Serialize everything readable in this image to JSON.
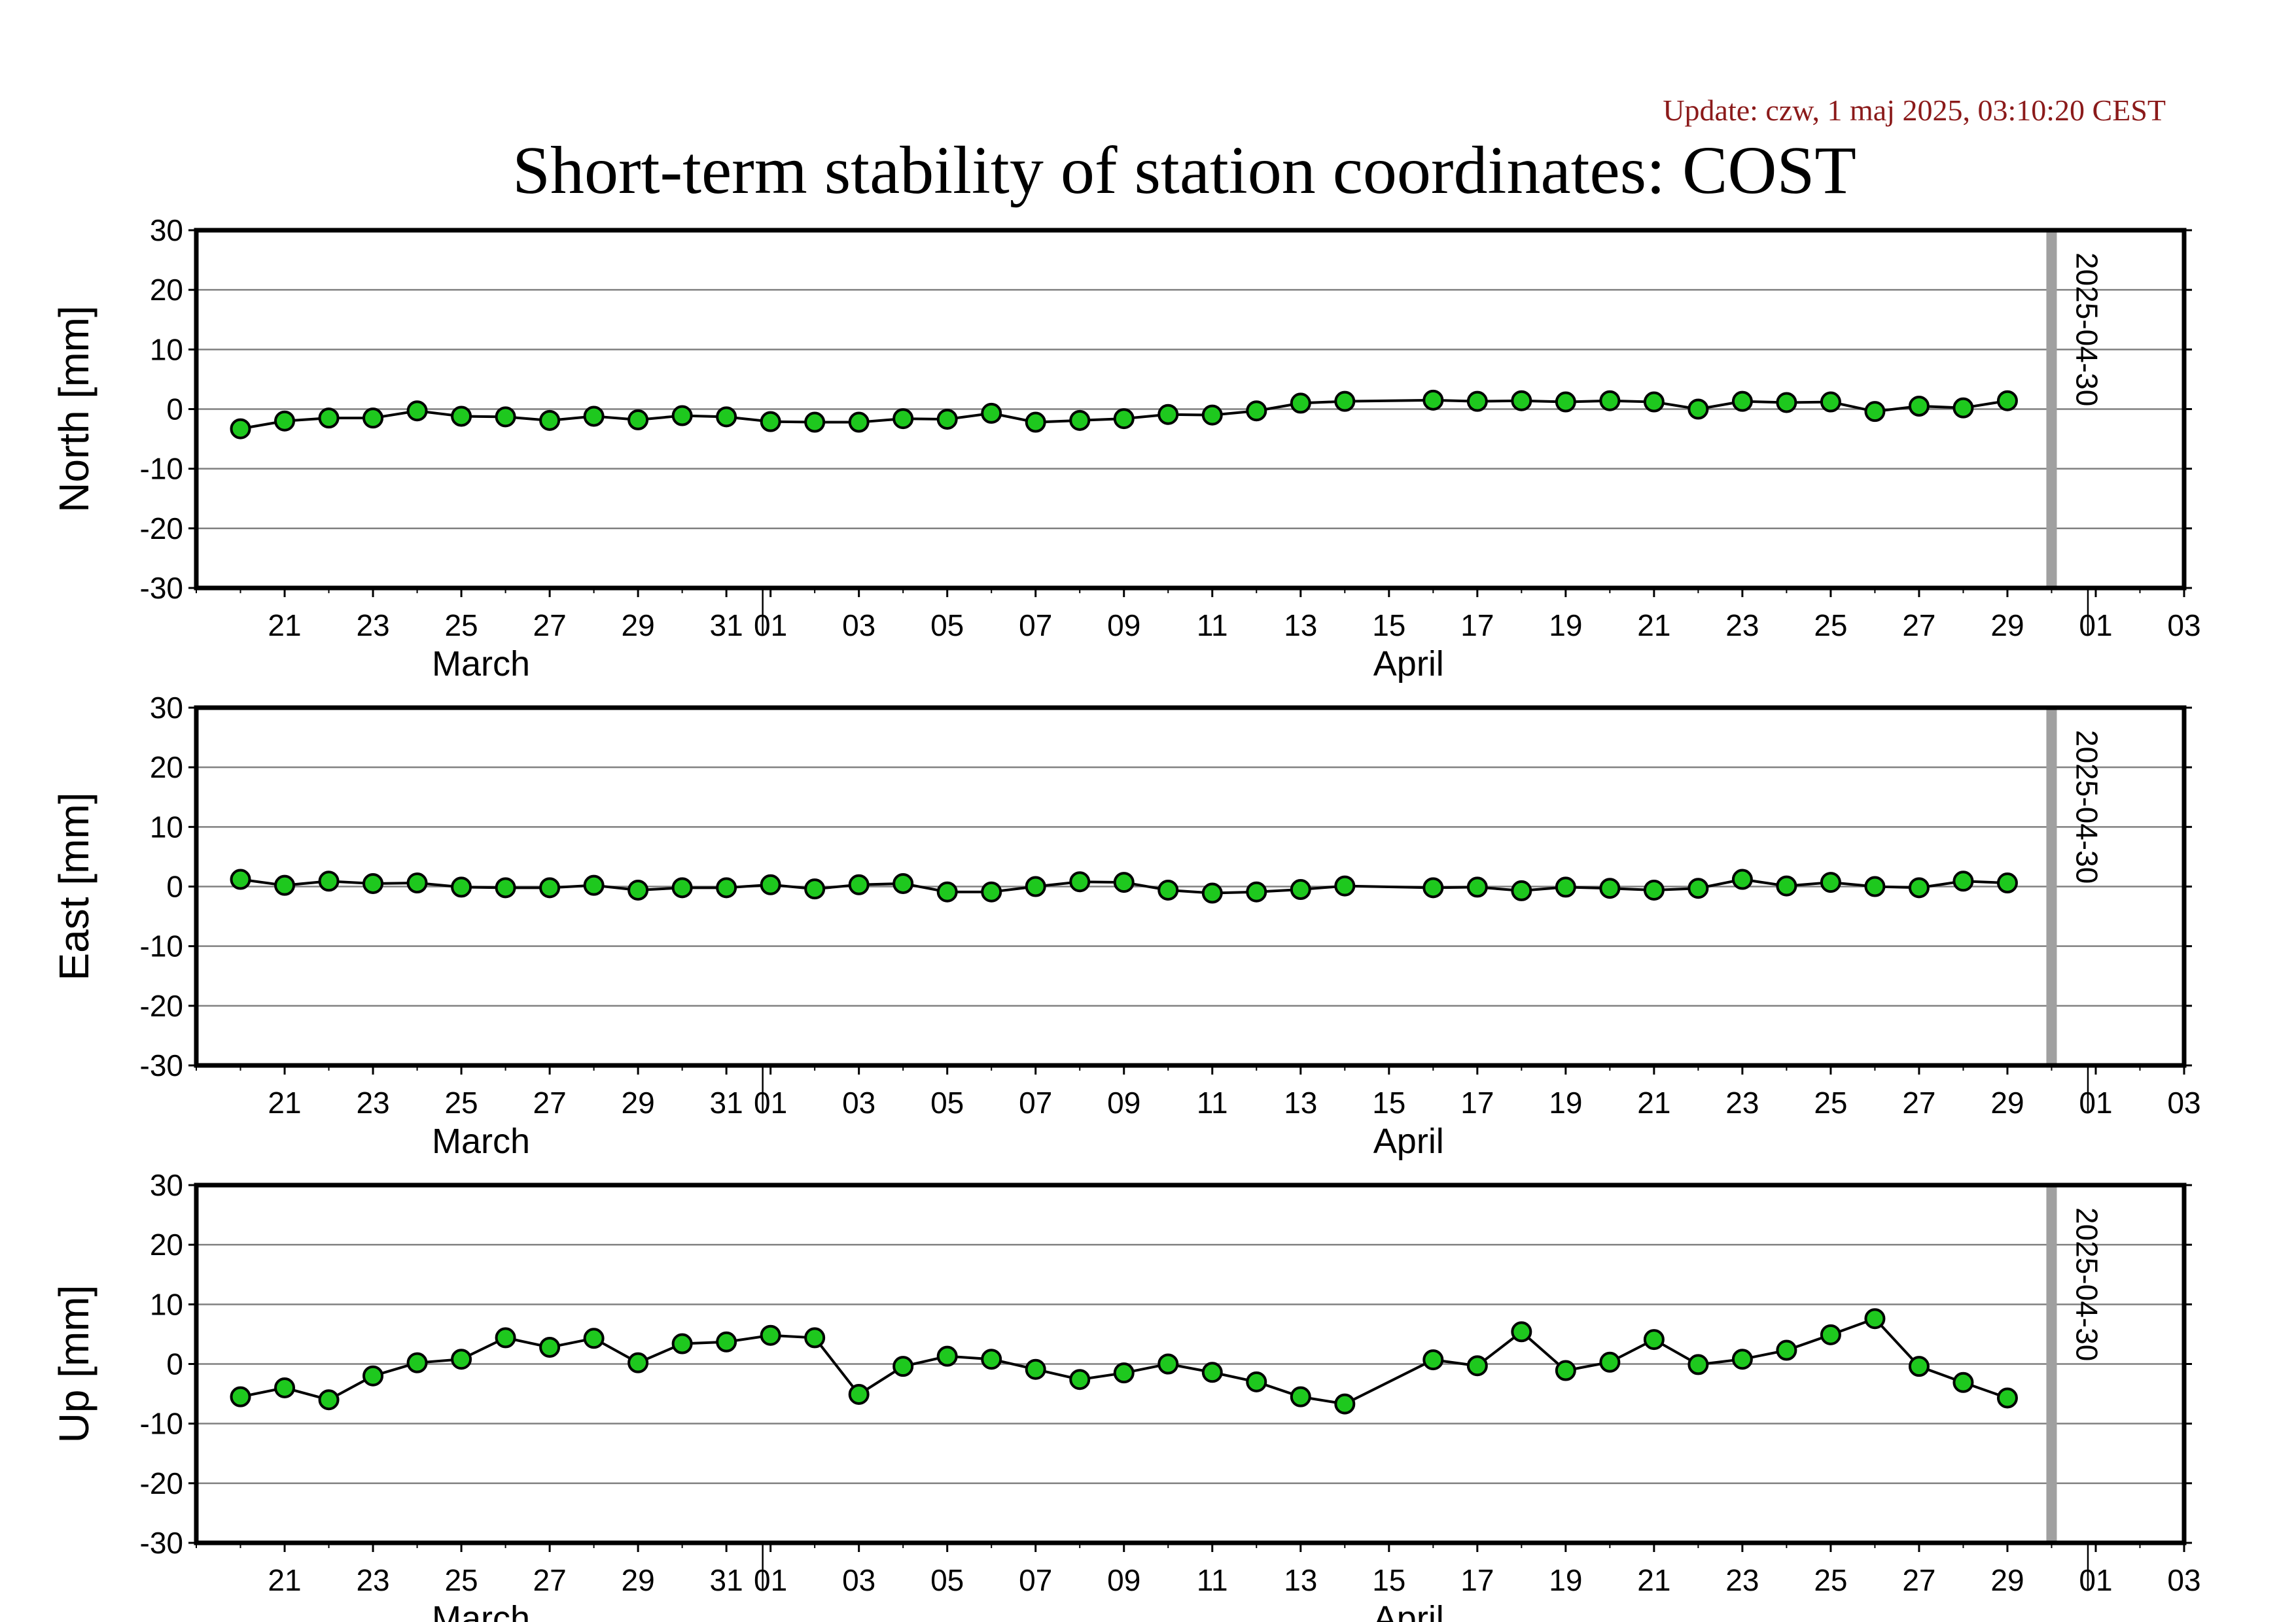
{
  "header": {
    "update": "Update: czw, 1 maj 2025, 03:10:20 CEST",
    "title": "Short-term stability of station coordinates: COST",
    "update_color": "#8b1a1a"
  },
  "colors": {
    "point_fill": "#1ec81e",
    "point_stroke": "#000000",
    "line": "#000000",
    "grid": "#808080",
    "marker_line": "#a0a0a0"
  },
  "chart_data": [
    {
      "type": "line",
      "name": "north",
      "ylabel": "North [mm]",
      "ylim": [
        -30,
        30
      ],
      "yticks": [
        -30,
        -20,
        -10,
        0,
        10,
        20,
        30
      ],
      "grid": true,
      "marker": {
        "date": "2025-04-30",
        "label": "2025-04-30"
      },
      "x_range": [
        "2025-03-19",
        "2025-05-03"
      ],
      "xtick_dates": [
        "2025-03-21",
        "2025-03-23",
        "2025-03-25",
        "2025-03-27",
        "2025-03-29",
        "2025-03-31",
        "2025-04-01",
        "2025-04-03",
        "2025-04-05",
        "2025-04-07",
        "2025-04-09",
        "2025-04-11",
        "2025-04-13",
        "2025-04-15",
        "2025-04-17",
        "2025-04-19",
        "2025-04-21",
        "2025-04-23",
        "2025-04-25",
        "2025-04-27",
        "2025-04-29",
        "2025-05-01",
        "2025-05-03"
      ],
      "xtick_labels": [
        "21",
        "23",
        "25",
        "27",
        "29",
        "31",
        "01",
        "03",
        "05",
        "07",
        "09",
        "11",
        "13",
        "15",
        "17",
        "19",
        "21",
        "23",
        "25",
        "27",
        "29",
        "01",
        "03"
      ],
      "month_labels": [
        {
          "text": "March",
          "date": "2025-03-25"
        },
        {
          "text": "April",
          "date": "2025-04-15"
        }
      ],
      "x": [
        "2025-03-20",
        "2025-03-21",
        "2025-03-22",
        "2025-03-23",
        "2025-03-24",
        "2025-03-25",
        "2025-03-26",
        "2025-03-27",
        "2025-03-28",
        "2025-03-29",
        "2025-03-30",
        "2025-03-31",
        "2025-04-01",
        "2025-04-02",
        "2025-04-03",
        "2025-04-04",
        "2025-04-05",
        "2025-04-06",
        "2025-04-07",
        "2025-04-08",
        "2025-04-09",
        "2025-04-10",
        "2025-04-11",
        "2025-04-12",
        "2025-04-13",
        "2025-04-14",
        "2025-04-16",
        "2025-04-17",
        "2025-04-18",
        "2025-04-19",
        "2025-04-20",
        "2025-04-21",
        "2025-04-22",
        "2025-04-23",
        "2025-04-24",
        "2025-04-25",
        "2025-04-26",
        "2025-04-27",
        "2025-04-28",
        "2025-04-29"
      ],
      "y": [
        -3.3,
        -2.0,
        -1.5,
        -1.5,
        -0.3,
        -1.2,
        -1.3,
        -1.9,
        -1.2,
        -1.8,
        -1.1,
        -1.3,
        -2.1,
        -2.2,
        -2.2,
        -1.6,
        -1.7,
        -0.7,
        -2.2,
        -1.9,
        -1.6,
        -0.9,
        -1.0,
        -0.3,
        1.0,
        1.3,
        1.5,
        1.3,
        1.4,
        1.2,
        1.4,
        1.2,
        0.0,
        1.3,
        1.1,
        1.2,
        -0.4,
        0.5,
        0.2,
        1.4
      ]
    },
    {
      "type": "line",
      "name": "east",
      "ylabel": "East [mm]",
      "ylim": [
        -30,
        30
      ],
      "yticks": [
        -30,
        -20,
        -10,
        0,
        10,
        20,
        30
      ],
      "grid": true,
      "marker": {
        "date": "2025-04-30",
        "label": "2025-04-30"
      },
      "x_range": [
        "2025-03-19",
        "2025-05-03"
      ],
      "xtick_dates": [
        "2025-03-21",
        "2025-03-23",
        "2025-03-25",
        "2025-03-27",
        "2025-03-29",
        "2025-03-31",
        "2025-04-01",
        "2025-04-03",
        "2025-04-05",
        "2025-04-07",
        "2025-04-09",
        "2025-04-11",
        "2025-04-13",
        "2025-04-15",
        "2025-04-17",
        "2025-04-19",
        "2025-04-21",
        "2025-04-23",
        "2025-04-25",
        "2025-04-27",
        "2025-04-29",
        "2025-05-01",
        "2025-05-03"
      ],
      "xtick_labels": [
        "21",
        "23",
        "25",
        "27",
        "29",
        "31",
        "01",
        "03",
        "05",
        "07",
        "09",
        "11",
        "13",
        "15",
        "17",
        "19",
        "21",
        "23",
        "25",
        "27",
        "29",
        "01",
        "03"
      ],
      "month_labels": [
        {
          "text": "March",
          "date": "2025-03-25"
        },
        {
          "text": "April",
          "date": "2025-04-15"
        }
      ],
      "x": [
        "2025-03-20",
        "2025-03-21",
        "2025-03-22",
        "2025-03-23",
        "2025-03-24",
        "2025-03-25",
        "2025-03-26",
        "2025-03-27",
        "2025-03-28",
        "2025-03-29",
        "2025-03-30",
        "2025-03-31",
        "2025-04-01",
        "2025-04-02",
        "2025-04-03",
        "2025-04-04",
        "2025-04-05",
        "2025-04-06",
        "2025-04-07",
        "2025-04-08",
        "2025-04-09",
        "2025-04-10",
        "2025-04-11",
        "2025-04-12",
        "2025-04-13",
        "2025-04-14",
        "2025-04-16",
        "2025-04-17",
        "2025-04-18",
        "2025-04-19",
        "2025-04-20",
        "2025-04-21",
        "2025-04-22",
        "2025-04-23",
        "2025-04-24",
        "2025-04-25",
        "2025-04-26",
        "2025-04-27",
        "2025-04-28",
        "2025-04-29"
      ],
      "y": [
        1.2,
        0.2,
        0.9,
        0.5,
        0.6,
        -0.1,
        -0.2,
        -0.2,
        0.2,
        -0.6,
        -0.2,
        -0.2,
        0.3,
        -0.4,
        0.3,
        0.5,
        -0.9,
        -0.9,
        0.0,
        0.8,
        0.7,
        -0.6,
        -1.1,
        -0.9,
        -0.5,
        0.1,
        -0.2,
        -0.1,
        -0.7,
        -0.1,
        -0.3,
        -0.6,
        -0.3,
        1.2,
        0.1,
        0.7,
        0.0,
        -0.2,
        0.9,
        0.6
      ]
    },
    {
      "type": "line",
      "name": "up",
      "ylabel": "Up [mm]",
      "ylim": [
        -30,
        30
      ],
      "yticks": [
        -30,
        -20,
        -10,
        0,
        10,
        20,
        30
      ],
      "grid": true,
      "marker": {
        "date": "2025-04-30",
        "label": "2025-04-30"
      },
      "x_range": [
        "2025-03-19",
        "2025-05-03"
      ],
      "xtick_dates": [
        "2025-03-21",
        "2025-03-23",
        "2025-03-25",
        "2025-03-27",
        "2025-03-29",
        "2025-03-31",
        "2025-04-01",
        "2025-04-03",
        "2025-04-05",
        "2025-04-07",
        "2025-04-09",
        "2025-04-11",
        "2025-04-13",
        "2025-04-15",
        "2025-04-17",
        "2025-04-19",
        "2025-04-21",
        "2025-04-23",
        "2025-04-25",
        "2025-04-27",
        "2025-04-29",
        "2025-05-01",
        "2025-05-03"
      ],
      "xtick_labels": [
        "21",
        "23",
        "25",
        "27",
        "29",
        "31",
        "01",
        "03",
        "05",
        "07",
        "09",
        "11",
        "13",
        "15",
        "17",
        "19",
        "21",
        "23",
        "25",
        "27",
        "29",
        "01",
        "03"
      ],
      "month_labels": [
        {
          "text": "March",
          "date": "2025-03-25"
        },
        {
          "text": "April",
          "date": "2025-04-15"
        }
      ],
      "x": [
        "2025-03-20",
        "2025-03-21",
        "2025-03-22",
        "2025-03-23",
        "2025-03-24",
        "2025-03-25",
        "2025-03-26",
        "2025-03-27",
        "2025-03-28",
        "2025-03-29",
        "2025-03-30",
        "2025-03-31",
        "2025-04-01",
        "2025-04-02",
        "2025-04-03",
        "2025-04-04",
        "2025-04-05",
        "2025-04-06",
        "2025-04-07",
        "2025-04-08",
        "2025-04-09",
        "2025-04-10",
        "2025-04-11",
        "2025-04-12",
        "2025-04-13",
        "2025-04-14",
        "2025-04-16",
        "2025-04-17",
        "2025-04-18",
        "2025-04-19",
        "2025-04-20",
        "2025-04-21",
        "2025-04-22",
        "2025-04-23",
        "2025-04-24",
        "2025-04-25",
        "2025-04-26",
        "2025-04-27",
        "2025-04-28",
        "2025-04-29"
      ],
      "y": [
        -5.5,
        -4.0,
        -6.0,
        -2.0,
        0.2,
        0.8,
        4.4,
        2.8,
        4.3,
        0.2,
        3.4,
        3.7,
        4.8,
        4.4,
        -5.1,
        -0.4,
        1.3,
        0.8,
        -0.9,
        -2.6,
        -1.5,
        0.0,
        -1.4,
        -3.0,
        -5.5,
        -6.7,
        0.7,
        -0.3,
        5.4,
        -1.1,
        0.3,
        4.1,
        -0.1,
        0.8,
        2.3,
        4.9,
        7.6,
        -0.4,
        -3.1,
        -5.7
      ]
    }
  ]
}
